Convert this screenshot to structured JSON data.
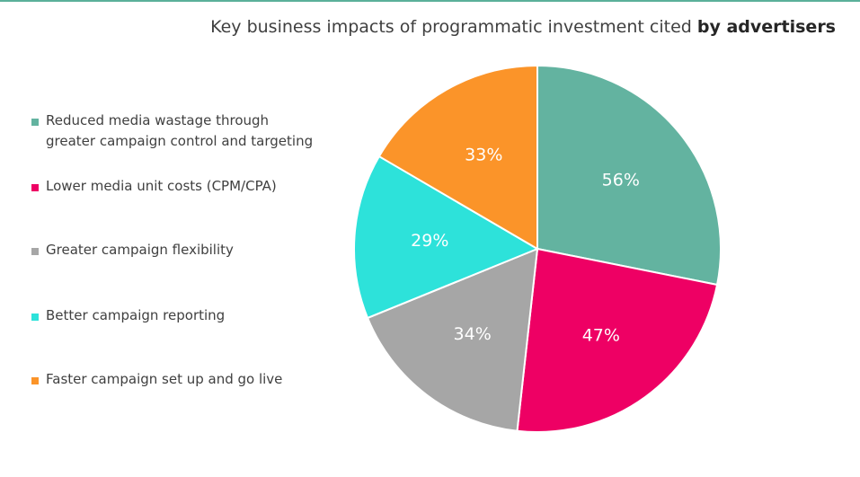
{
  "title": {
    "main": "Key business impacts of programmatic investment cited ",
    "bold": "by advertisers"
  },
  "colors": {
    "rule": "#5bb09a"
  },
  "chart_data": {
    "type": "pie",
    "title": "Key business impacts of programmatic investment cited by advertisers",
    "categories": [
      "Reduced media wastage through greater campaign control and targeting",
      "Lower media unit costs (CPM/CPA)",
      "Greater campaign flexibility",
      "Better campaign reporting",
      "Faster campaign set up and go live"
    ],
    "values": [
      56,
      47,
      34,
      29,
      33
    ],
    "value_labels": [
      "56%",
      "47%",
      "34%",
      "29%",
      "33%"
    ],
    "colors": [
      "#63b3a0",
      "#ee0064",
      "#a6a6a6",
      "#2de2da",
      "#fb9429"
    ],
    "legend_position": "left",
    "start_angle": "12 o'clock",
    "direction": "clockwise"
  },
  "legend": [
    {
      "label": "Reduced media wastage through\ngreater campaign control and targeting",
      "color": "#63b3a0"
    },
    {
      "label": "Lower media unit costs (CPM/CPA)",
      "color": "#ee0064"
    },
    {
      "label": "Greater campaign flexibility",
      "color": "#a6a6a6"
    },
    {
      "label": "Better campaign reporting",
      "color": "#2de2da"
    },
    {
      "label": "Faster campaign set up and go live",
      "color": "#fb9429"
    }
  ]
}
